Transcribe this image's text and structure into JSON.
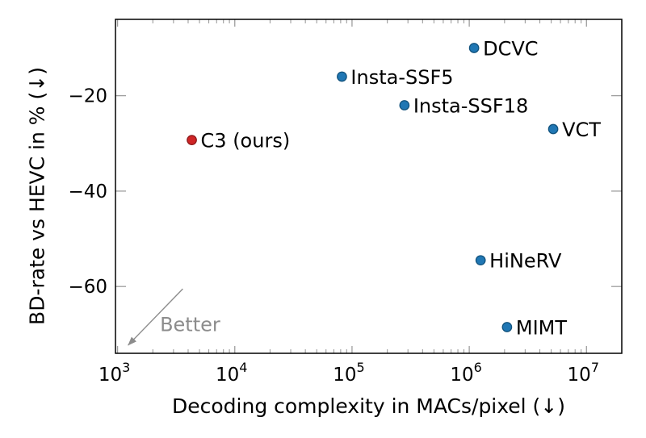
{
  "chart_data": {
    "type": "scatter",
    "title": "",
    "xlabel": "Decoding complexity in MACs/pixel (↓)",
    "ylabel": "BD-rate vs HEVC in % (↓)",
    "x_scale": "log10",
    "xlim": [
      960,
      20000000
    ],
    "ylim": [
      -74,
      -4
    ],
    "grid": false,
    "legend_position": "none",
    "x_ticks": [
      {
        "value": 1000,
        "base": "10",
        "exp": "3"
      },
      {
        "value": 10000,
        "base": "10",
        "exp": "4"
      },
      {
        "value": 100000,
        "base": "10",
        "exp": "5"
      },
      {
        "value": 1000000,
        "base": "10",
        "exp": "6"
      },
      {
        "value": 10000000,
        "base": "10",
        "exp": "7"
      }
    ],
    "y_ticks": [
      {
        "value": -20,
        "label": "−20"
      },
      {
        "value": -40,
        "label": "−40"
      },
      {
        "value": -60,
        "label": "−60"
      }
    ],
    "points": [
      {
        "name": "DCVC",
        "x": 1100000,
        "y": -10,
        "color": "blue"
      },
      {
        "name": "Insta-SSF5",
        "x": 82000,
        "y": -16,
        "color": "blue"
      },
      {
        "name": "Insta-SSF18",
        "x": 280000,
        "y": -22,
        "color": "blue"
      },
      {
        "name": "VCT",
        "x": 5200000,
        "y": -27,
        "color": "blue"
      },
      {
        "name": "C3 (ours)",
        "x": 4300,
        "y": -29.3,
        "color": "red"
      },
      {
        "name": "HiNeRV",
        "x": 1250000,
        "y": -54.5,
        "color": "blue"
      },
      {
        "name": "MIMT",
        "x": 2100000,
        "y": -68.5,
        "color": "blue"
      }
    ],
    "annotation": {
      "text": "Better",
      "x1": 3600,
      "y1": -60.5,
      "x2": 1230,
      "y2": -72.3,
      "text_x": 2300,
      "text_y": -67.8,
      "color": "#8c8c8c"
    },
    "colors": {
      "blue_fill": "#2077b4",
      "blue_stroke": "#12537e",
      "red_fill": "#cf2526",
      "red_stroke": "#8e1a1b",
      "tick": "#9e9e9e",
      "axis": "#000000",
      "label_text": "#000000"
    }
  }
}
